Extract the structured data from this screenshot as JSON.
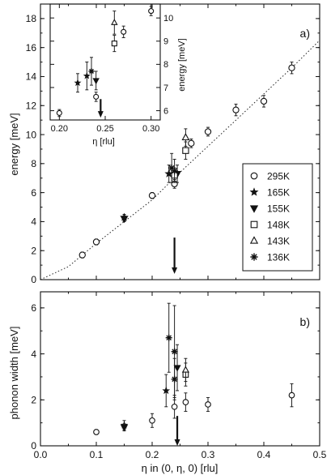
{
  "chart_data": [
    {
      "type": "scatter",
      "panel_label": "a)",
      "xlabel": "",
      "ylabel": "energy [meV]",
      "xlim": [
        0.0,
        0.5
      ],
      "ylim": [
        0,
        19
      ],
      "xticks": [
        "0.0",
        "0.1",
        "0.2",
        "0.3",
        "0.4",
        "0.5"
      ],
      "yticks": [
        "0",
        "2",
        "4",
        "6",
        "8",
        "10",
        "12",
        "14",
        "16",
        "18"
      ],
      "legend_position": "lower-right",
      "legend": [
        {
          "label": "295K",
          "marker": "circle"
        },
        {
          "label": "165K",
          "marker": "star"
        },
        {
          "label": "155K",
          "marker": "triangle-down"
        },
        {
          "label": "148K",
          "marker": "square"
        },
        {
          "label": "143K",
          "marker": "triangle-up"
        },
        {
          "label": "136K",
          "marker": "asterisk"
        }
      ],
      "series": [
        {
          "name": "295K",
          "marker": "circle",
          "points": [
            {
              "x": 0.075,
              "y": 1.7,
              "err": 0.2
            },
            {
              "x": 0.1,
              "y": 2.6,
              "err": 0.2
            },
            {
              "x": 0.2,
              "y": 5.8,
              "err": 0.2
            },
            {
              "x": 0.24,
              "y": 6.6,
              "err": 0.3
            },
            {
              "x": 0.27,
              "y": 9.4,
              "err": 0.3
            },
            {
              "x": 0.3,
              "y": 10.2,
              "err": 0.3
            },
            {
              "x": 0.35,
              "y": 11.7,
              "err": 0.4
            },
            {
              "x": 0.4,
              "y": 12.3,
              "err": 0.4
            },
            {
              "x": 0.45,
              "y": 14.6,
              "err": 0.4
            }
          ]
        },
        {
          "name": "165K",
          "marker": "star",
          "points": [
            {
              "x": 0.15,
              "y": 4.3,
              "err": 0.2
            },
            {
              "x": 0.23,
              "y": 7.3,
              "err": 0.6
            }
          ]
        },
        {
          "name": "155K",
          "marker": "triangle-down",
          "points": [
            {
              "x": 0.15,
              "y": 4.2,
              "err": 0.2
            },
            {
              "x": 0.245,
              "y": 7.3,
              "err": 0.6
            }
          ]
        },
        {
          "name": "148K",
          "marker": "square",
          "points": [
            {
              "x": 0.24,
              "y": 7.2,
              "err": 0.5
            },
            {
              "x": 0.26,
              "y": 8.9,
              "err": 0.6
            }
          ]
        },
        {
          "name": "143K",
          "marker": "triangle-up",
          "points": [
            {
              "x": 0.26,
              "y": 9.8,
              "err": 0.6
            }
          ]
        },
        {
          "name": "136K",
          "marker": "asterisk",
          "points": [
            {
              "x": 0.235,
              "y": 7.7,
              "err": 1.0
            },
            {
              "x": 0.24,
              "y": 7.5,
              "err": 0.8
            }
          ]
        }
      ],
      "dotted_curve": {
        "x": [
          0.0,
          0.05,
          0.1,
          0.15,
          0.2,
          0.25,
          0.3,
          0.35,
          0.4,
          0.45,
          0.5
        ],
        "y": [
          0.0,
          0.9,
          2.5,
          4.0,
          5.5,
          7.4,
          9.2,
          11.0,
          12.8,
          14.6,
          16.5
        ]
      },
      "arrow": {
        "x": 0.24,
        "y_from": 2.9,
        "y_to": 0.4
      }
    },
    {
      "type": "scatter",
      "role": "inset",
      "xlabel": "η [rlu]",
      "ylabel": "energy [meV]",
      "xlim": [
        0.19,
        0.31
      ],
      "ylim": [
        5.6,
        10.6
      ],
      "xticks": [
        "0.20",
        "0.25",
        "0.30"
      ],
      "yticks": [
        "6",
        "7",
        "8",
        "9",
        "10"
      ],
      "series": [
        {
          "name": "295K",
          "marker": "circle",
          "points": [
            {
              "x": 0.2,
              "y": 5.9,
              "err": 0.15
            },
            {
              "x": 0.24,
              "y": 6.6,
              "err": 0.2
            },
            {
              "x": 0.27,
              "y": 9.4,
              "err": 0.25
            },
            {
              "x": 0.3,
              "y": 10.3,
              "err": 0.2
            }
          ]
        },
        {
          "name": "165K",
          "marker": "star",
          "points": [
            {
              "x": 0.22,
              "y": 7.2,
              "err": 0.4
            },
            {
              "x": 0.23,
              "y": 7.5,
              "err": 0.6
            }
          ]
        },
        {
          "name": "155K",
          "marker": "triangle-down",
          "points": [
            {
              "x": 0.24,
              "y": 7.3,
              "err": 0.4
            }
          ]
        },
        {
          "name": "148K",
          "marker": "square",
          "points": [
            {
              "x": 0.26,
              "y": 8.9,
              "err": 0.35
            }
          ]
        },
        {
          "name": "143K",
          "marker": "triangle-up",
          "points": [
            {
              "x": 0.26,
              "y": 9.8,
              "err": 0.5
            }
          ]
        },
        {
          "name": "136K",
          "marker": "asterisk",
          "points": [
            {
              "x": 0.235,
              "y": 7.7,
              "err": 0.6
            }
          ]
        }
      ],
      "arrow": {
        "x": 0.245,
        "y_from": 6.5,
        "y_to": 5.7
      }
    },
    {
      "type": "scatter",
      "panel_label": "b)",
      "xlabel": "η in (0, η, 0) [rlu]",
      "ylabel": "phonon width [meV]",
      "xlim": [
        0.0,
        0.5
      ],
      "ylim": [
        0,
        6.7
      ],
      "xticks": [
        "0.0",
        "0.1",
        "0.2",
        "0.3",
        "0.4",
        "0.5"
      ],
      "yticks": [
        "0",
        "2",
        "4",
        "6"
      ],
      "series": [
        {
          "name": "295K",
          "marker": "circle",
          "points": [
            {
              "x": 0.1,
              "y": 0.6,
              "err": 0.1
            },
            {
              "x": 0.2,
              "y": 1.1,
              "err": 0.3
            },
            {
              "x": 0.24,
              "y": 1.7,
              "err": 0.5
            },
            {
              "x": 0.26,
              "y": 1.9,
              "err": 0.4
            },
            {
              "x": 0.3,
              "y": 1.8,
              "err": 0.3
            },
            {
              "x": 0.45,
              "y": 2.2,
              "err": 0.5
            }
          ]
        },
        {
          "name": "165K",
          "marker": "star",
          "points": [
            {
              "x": 0.15,
              "y": 0.9,
              "err": 0.2
            },
            {
              "x": 0.225,
              "y": 2.4,
              "err": 0.7
            }
          ]
        },
        {
          "name": "155K",
          "marker": "triangle-down",
          "points": [
            {
              "x": 0.15,
              "y": 0.8,
              "err": 0.15
            },
            {
              "x": 0.245,
              "y": 3.4,
              "err": 1.0
            }
          ]
        },
        {
          "name": "148K",
          "marker": "square",
          "points": [
            {
              "x": 0.26,
              "y": 3.1,
              "err": 0.5
            }
          ]
        },
        {
          "name": "143K",
          "marker": "triangle-up",
          "points": [
            {
              "x": 0.26,
              "y": 3.3,
              "err": 0.5
            }
          ]
        },
        {
          "name": "136K",
          "marker": "asterisk",
          "points": [
            {
              "x": 0.23,
              "y": 4.7,
              "err": 1.5
            },
            {
              "x": 0.24,
              "y": 4.1,
              "err": 2.0
            },
            {
              "x": 0.24,
              "y": 2.9,
              "err": 0.9
            }
          ]
        }
      ],
      "arrow": {
        "x": 0.245,
        "y_from": 1.3,
        "y_to": 0.0
      }
    }
  ]
}
